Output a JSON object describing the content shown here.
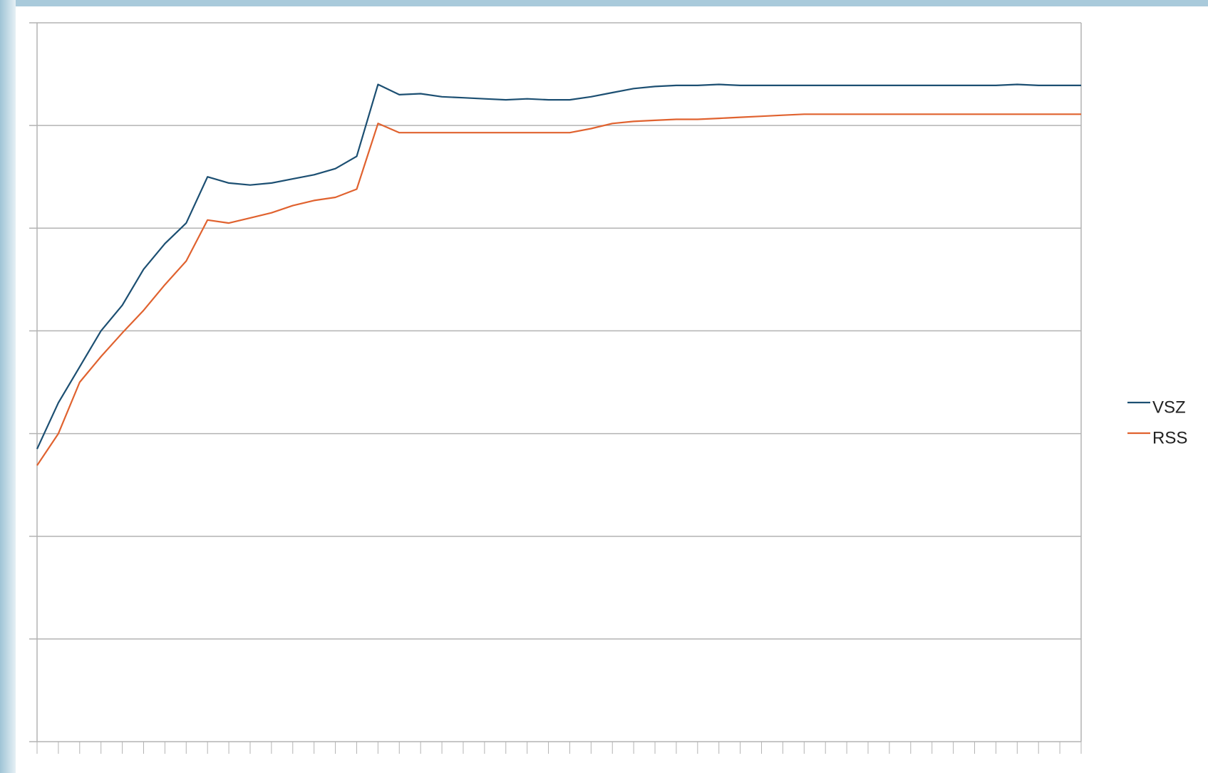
{
  "chart_data": {
    "type": "line",
    "categories": [
      null,
      null,
      null,
      null,
      null,
      null,
      null,
      null,
      null,
      null,
      null,
      null,
      null,
      null,
      null,
      null,
      null,
      null,
      null,
      null,
      null,
      null,
      null,
      null,
      null,
      null,
      null,
      null,
      null,
      null,
      null,
      null,
      null,
      null,
      null,
      null,
      null,
      null,
      null,
      null,
      null,
      null,
      null,
      null,
      null,
      null,
      null,
      null,
      null,
      null
    ],
    "series": [
      {
        "name": "VSZ",
        "color": "#1c4f72",
        "values": [
          2.85,
          3.3,
          3.65,
          4.0,
          4.25,
          4.6,
          4.85,
          5.05,
          5.5,
          5.44,
          5.42,
          5.44,
          5.48,
          5.52,
          5.58,
          5.7,
          6.4,
          6.3,
          6.31,
          6.28,
          6.27,
          6.26,
          6.25,
          6.26,
          6.25,
          6.25,
          6.28,
          6.32,
          6.36,
          6.38,
          6.39,
          6.39,
          6.4,
          6.39,
          6.39,
          6.39,
          6.39,
          6.39,
          6.39,
          6.39,
          6.39,
          6.39,
          6.39,
          6.39,
          6.39,
          6.39,
          6.4,
          6.39,
          6.39,
          6.39
        ]
      },
      {
        "name": "RSS",
        "color": "#e0622f",
        "values": [
          2.69,
          3.0,
          3.5,
          3.75,
          3.98,
          4.2,
          4.45,
          4.68,
          5.08,
          5.05,
          5.1,
          5.15,
          5.22,
          5.27,
          5.3,
          5.38,
          6.02,
          5.93,
          5.93,
          5.93,
          5.93,
          5.93,
          5.93,
          5.93,
          5.93,
          5.93,
          5.97,
          6.02,
          6.04,
          6.05,
          6.06,
          6.06,
          6.07,
          6.08,
          6.09,
          6.1,
          6.11,
          6.11,
          6.11,
          6.11,
          6.11,
          6.11,
          6.11,
          6.11,
          6.11,
          6.11,
          6.11,
          6.11,
          6.11,
          6.11
        ]
      }
    ],
    "ylim": [
      0,
      7
    ],
    "yticks": [
      0,
      1,
      2,
      3,
      4,
      5,
      6,
      7
    ],
    "grid": true,
    "legend": "right"
  }
}
